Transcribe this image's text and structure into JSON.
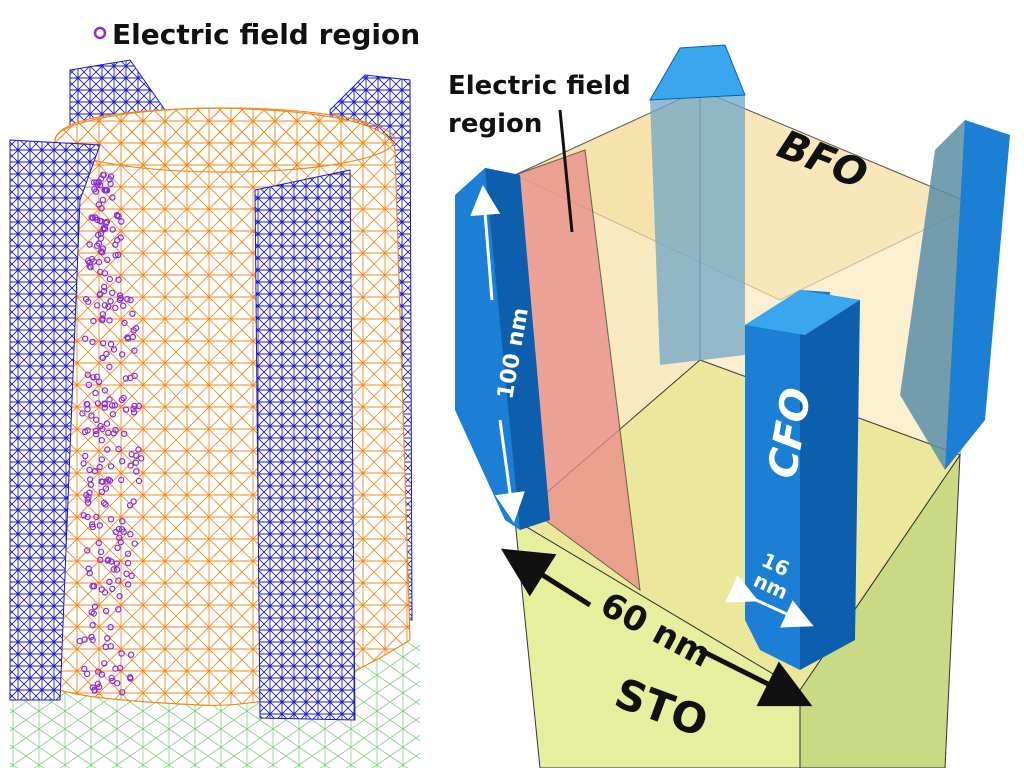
{
  "left_panel": {
    "legend": {
      "label": "Electric field region",
      "marker_color": "#8a2be2"
    },
    "mesh_colors": {
      "pillar_mesh": "#1a1acc",
      "matrix_mesh": "#f08a1e",
      "substrate_mesh": "#7ccf7c",
      "field_nodes": "#8a2be2"
    }
  },
  "right_panel": {
    "annotation": {
      "line1": "Electric field",
      "line2": "region"
    },
    "labels": {
      "matrix": "BFO",
      "pillar": "CFO",
      "substrate": "STO",
      "height": "100 nm",
      "width": "60 nm",
      "pillar_width_value": "16",
      "pillar_width_unit": "nm"
    },
    "colors": {
      "pillar_front": "#1b7fd6",
      "pillar_side": "#0d5fae",
      "pillar_top": "#3aa6ee",
      "matrix_fill": "#f6e2a8",
      "field_region": "#e88a8a",
      "substrate_front": "#e6ef9e",
      "substrate_side": "#c9d984"
    }
  }
}
